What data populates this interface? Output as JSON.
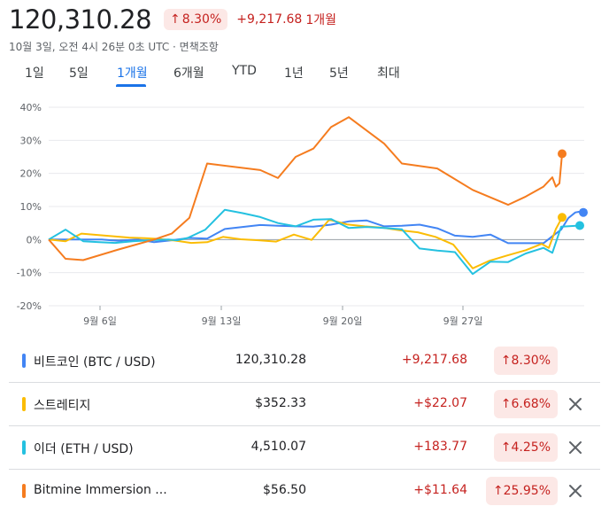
{
  "header": {
    "price": "120,310.28",
    "pct_change": "8.30%",
    "abs_change": "+9,217.68",
    "period": "1개월",
    "timestamp": "10월 3일, 오전 4시 26분 0초 UTC · 면책조항"
  },
  "tabs": [
    {
      "label": "1일",
      "active": false
    },
    {
      "label": "5일",
      "active": false
    },
    {
      "label": "1개월",
      "active": true
    },
    {
      "label": "6개월",
      "active": false
    },
    {
      "label": "YTD",
      "active": false
    },
    {
      "label": "1년",
      "active": false
    },
    {
      "label": "5년",
      "active": false
    },
    {
      "label": "최대",
      "active": false
    }
  ],
  "chart_data": {
    "type": "line",
    "ylim": [
      -20,
      40
    ],
    "yticks": [
      "40%",
      "30%",
      "20%",
      "10%",
      "0%",
      "-10%",
      "-20%"
    ],
    "xticks": [
      "9월 6일",
      "9월 13일",
      "9월 20일",
      "9월 27일"
    ],
    "grid": true,
    "series": [
      {
        "name": "비트코인 (BTC / USD)",
        "color": "#4285f4",
        "values": [
          0,
          0,
          0,
          0,
          -0.4,
          0,
          -0.8,
          -0.2,
          0.5,
          0.3,
          3.2,
          3.8,
          4.4,
          4.2,
          4.0,
          3.9,
          4.5,
          5.5,
          5.8,
          4.0,
          4.2,
          4.5,
          3.4,
          1.2,
          0.8,
          1.5,
          -1.1,
          -1.1,
          -1.1,
          1.0,
          3.0,
          6.5,
          8.2,
          8.4,
          8.2
        ]
      },
      {
        "name": "스트레티지",
        "color": "#fbbc04",
        "values": [
          0,
          -0.5,
          1.8,
          1.4,
          1.0,
          0.6,
          0.4,
          0.2,
          -0.3,
          -1.0,
          -0.8,
          0.8,
          0.1,
          -0.2,
          -0.6,
          1.5,
          -0.1,
          6.0,
          4.6,
          4.0,
          3.6,
          2.8,
          2.2,
          0.8,
          -1.5,
          -8.7,
          -6.5,
          -4.9,
          -3.2,
          -1.3,
          -2.5,
          3.2,
          6.7
        ]
      },
      {
        "name": "이더 (ETH / USD)",
        "color": "#24c1e0",
        "values": [
          0,
          3.0,
          -0.5,
          -0.8,
          -1.0,
          -0.5,
          -0.2,
          0,
          -0.2,
          0.5,
          3.0,
          9.0,
          8.0,
          6.8,
          5.0,
          4.0,
          6.0,
          6.2,
          3.5,
          3.8,
          3.5,
          3.1,
          -2.7,
          -3.3,
          -3.8,
          -10.4,
          -6.7,
          -6.8,
          -4.2,
          -2.5,
          -4.0,
          3.9,
          4.25
        ]
      },
      {
        "name": "Bitmine Immersion Technologies",
        "color": "#f57c1f",
        "values": [
          0,
          -5.8,
          -6.2,
          -3.0,
          0,
          1.8,
          6.6,
          23.0,
          21.0,
          18.6,
          25.0,
          27.5,
          34.0,
          37.0,
          29.0,
          23.0,
          21.5,
          15.0,
          10.5,
          13.0,
          16.0,
          18.8,
          16.0,
          17.0,
          25.95
        ]
      }
    ]
  },
  "rows": [
    {
      "name": "비트코인 (BTC / USD)",
      "value": "120,310.28",
      "change": "+9,217.68",
      "pct": "8.30%",
      "color": "#4285f4",
      "removable": false
    },
    {
      "name": "스트레티지",
      "value": "$352.33",
      "change": "+$22.07",
      "pct": "6.68%",
      "color": "#fbbc04",
      "removable": true
    },
    {
      "name": "이더 (ETH / USD)",
      "value": "4,510.07",
      "change": "+183.77",
      "pct": "4.25%",
      "color": "#24c1e0",
      "removable": true
    },
    {
      "name": "Bitmine Immersion ...",
      "value": "$56.50",
      "change": "+$11.64",
      "pct": "25.95%",
      "color": "#f57c1f",
      "removable": true
    }
  ]
}
